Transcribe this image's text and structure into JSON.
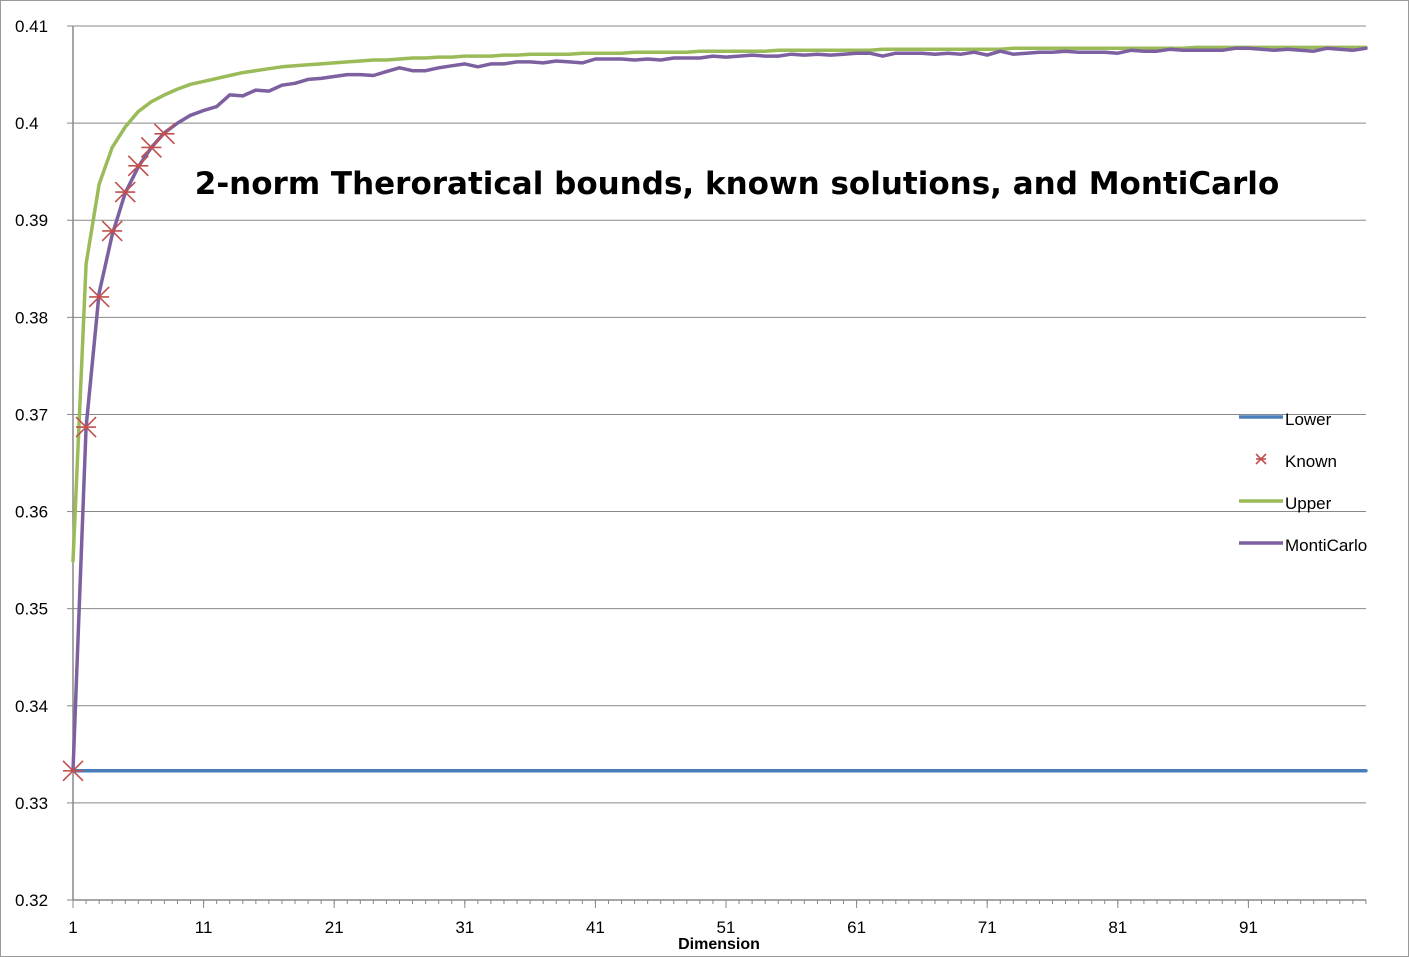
{
  "chart_data": {
    "type": "line",
    "title": "2-norm Theroratical bounds, known solutions, and MontiCarlo",
    "xlabel": "Dimension",
    "ylabel": "",
    "xlim": [
      1,
      100
    ],
    "ylim": [
      0.32,
      0.41
    ],
    "x_ticks": [
      "1",
      "11",
      "21",
      "31",
      "41",
      "51",
      "61",
      "71",
      "81",
      "91"
    ],
    "y_ticks": [
      "0.32",
      "0.33",
      "0.34",
      "0.35",
      "0.36",
      "0.37",
      "0.38",
      "0.39",
      "0.4",
      "0.41"
    ],
    "grid": "horizontal",
    "legend_position": "right",
    "colors": {
      "lower": "#4a7ebb",
      "known": "#c0504d",
      "upper": "#9bbb59",
      "monticarlo": "#7d60a0",
      "grid": "#888888",
      "axis": "#888888"
    },
    "series": [
      {
        "name": "Lower",
        "kind": "line",
        "x_start": 1,
        "values": [
          0.3333,
          0.3333,
          0.3333,
          0.3333,
          0.3333,
          0.3333,
          0.3333,
          0.3333,
          0.3333,
          0.3333,
          0.3333,
          0.3333,
          0.3333,
          0.3333,
          0.3333,
          0.3333,
          0.3333,
          0.3333,
          0.3333,
          0.3333,
          0.3333,
          0.3333,
          0.3333,
          0.3333,
          0.3333,
          0.3333,
          0.3333,
          0.3333,
          0.3333,
          0.3333,
          0.3333,
          0.3333,
          0.3333,
          0.3333,
          0.3333,
          0.3333,
          0.3333,
          0.3333,
          0.3333,
          0.3333,
          0.3333,
          0.3333,
          0.3333,
          0.3333,
          0.3333,
          0.3333,
          0.3333,
          0.3333,
          0.3333,
          0.3333,
          0.3333,
          0.3333,
          0.3333,
          0.3333,
          0.3333,
          0.3333,
          0.3333,
          0.3333,
          0.3333,
          0.3333,
          0.3333,
          0.3333,
          0.3333,
          0.3333,
          0.3333,
          0.3333,
          0.3333,
          0.3333,
          0.3333,
          0.3333,
          0.3333,
          0.3333,
          0.3333,
          0.3333,
          0.3333,
          0.3333,
          0.3333,
          0.3333,
          0.3333,
          0.3333,
          0.3333,
          0.3333,
          0.3333,
          0.3333,
          0.3333,
          0.3333,
          0.3333,
          0.3333,
          0.3333,
          0.3333,
          0.3333,
          0.3333,
          0.3333,
          0.3333,
          0.3333,
          0.3333,
          0.3333,
          0.3333,
          0.3333,
          0.3333
        ]
      },
      {
        "name": "Known",
        "kind": "marker",
        "x": [
          1,
          2,
          3,
          4,
          5,
          6,
          7,
          8
        ],
        "values": [
          0.3333,
          0.3687,
          0.3821,
          0.3889,
          0.3929,
          0.3956,
          0.3975,
          0.3989
        ]
      },
      {
        "name": "Upper",
        "kind": "line",
        "x_start": 1,
        "values": [
          0.3549,
          0.3855,
          0.3937,
          0.3975,
          0.3996,
          0.4012,
          0.4022,
          0.4029,
          0.4035,
          0.404,
          0.4043,
          0.4046,
          0.4049,
          0.4052,
          0.4054,
          0.4056,
          0.4058,
          0.4059,
          0.406,
          0.4061,
          0.4062,
          0.4063,
          0.4064,
          0.4065,
          0.4065,
          0.4066,
          0.4067,
          0.4067,
          0.4068,
          0.4068,
          0.4069,
          0.4069,
          0.4069,
          0.407,
          0.407,
          0.4071,
          0.4071,
          0.4071,
          0.4071,
          0.4072,
          0.4072,
          0.4072,
          0.4072,
          0.4073,
          0.4073,
          0.4073,
          0.4073,
          0.4073,
          0.4074,
          0.4074,
          0.4074,
          0.4074,
          0.4074,
          0.4074,
          0.4075,
          0.4075,
          0.4075,
          0.4075,
          0.4075,
          0.4075,
          0.4075,
          0.4075,
          0.4076,
          0.4076,
          0.4076,
          0.4076,
          0.4076,
          0.4076,
          0.4076,
          0.4076,
          0.4076,
          0.4076,
          0.4077,
          0.4077,
          0.4077,
          0.4077,
          0.4077,
          0.4077,
          0.4077,
          0.4077,
          0.4077,
          0.4077,
          0.4077,
          0.4077,
          0.4077,
          0.4077,
          0.4078,
          0.4078,
          0.4078,
          0.4078,
          0.4078,
          0.4078,
          0.4078,
          0.4078,
          0.4078,
          0.4078,
          0.4078,
          0.4078,
          0.4078,
          0.4078
        ]
      },
      {
        "name": "MontiCarlo",
        "kind": "line",
        "x_start": 1,
        "values": [
          0.3333,
          0.3687,
          0.3825,
          0.3885,
          0.3928,
          0.3955,
          0.3975,
          0.399,
          0.4,
          0.4008,
          0.4013,
          0.4017,
          0.4029,
          0.4028,
          0.4034,
          0.4033,
          0.4039,
          0.4041,
          0.4045,
          0.4046,
          0.4048,
          0.405,
          0.405,
          0.4049,
          0.4053,
          0.4057,
          0.4054,
          0.4054,
          0.4057,
          0.4059,
          0.4061,
          0.4058,
          0.4061,
          0.4061,
          0.4063,
          0.4063,
          0.4062,
          0.4064,
          0.4063,
          0.4062,
          0.4066,
          0.4066,
          0.4066,
          0.4065,
          0.4066,
          0.4065,
          0.4067,
          0.4067,
          0.4067,
          0.4069,
          0.4068,
          0.4069,
          0.407,
          0.4069,
          0.4069,
          0.4071,
          0.407,
          0.4071,
          0.407,
          0.4071,
          0.4072,
          0.4072,
          0.4069,
          0.4072,
          0.4072,
          0.4072,
          0.4071,
          0.4072,
          0.4071,
          0.4073,
          0.407,
          0.4074,
          0.4071,
          0.4072,
          0.4073,
          0.4073,
          0.4074,
          0.4073,
          0.4073,
          0.4073,
          0.4072,
          0.4075,
          0.4074,
          0.4074,
          0.4076,
          0.4075,
          0.4075,
          0.4075,
          0.4075,
          0.4077,
          0.4077,
          0.4076,
          0.4075,
          0.4076,
          0.4075,
          0.4074,
          0.4077,
          0.4076,
          0.4075,
          0.4077
        ]
      }
    ]
  }
}
